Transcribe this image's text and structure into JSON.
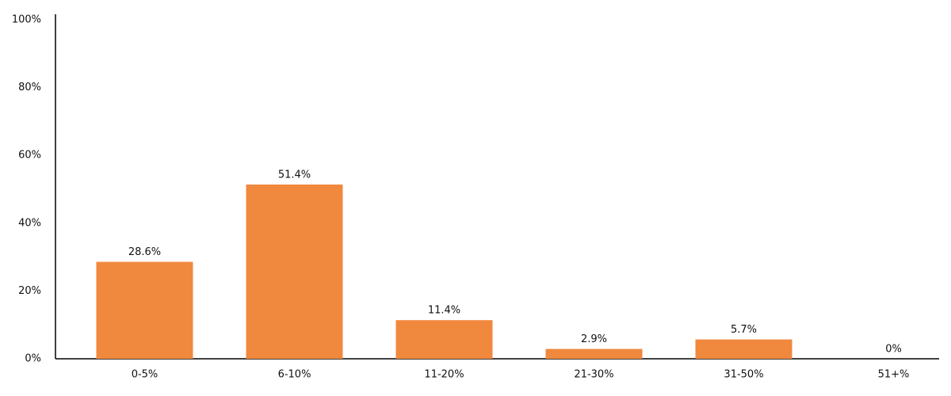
{
  "chart_data": {
    "type": "bar",
    "categories": [
      "0-5%",
      "6-10%",
      "11-20%",
      "21-30%",
      "31-50%",
      "51+%"
    ],
    "values": [
      28.6,
      51.4,
      11.4,
      2.9,
      5.7,
      0
    ],
    "value_labels": [
      "28.6%",
      "51.4%",
      "11.4%",
      "2.9%",
      "5.7%",
      "0%"
    ],
    "color": "#f0883e",
    "ylim": [
      0,
      100
    ],
    "yticks": [
      {
        "value": 0,
        "label": "0%"
      },
      {
        "value": 20,
        "label": "20%"
      },
      {
        "value": 40,
        "label": "40%"
      },
      {
        "value": 60,
        "label": "60%"
      },
      {
        "value": 80,
        "label": "80%"
      },
      {
        "value": 100,
        "label": "100%"
      }
    ],
    "grid": false
  }
}
